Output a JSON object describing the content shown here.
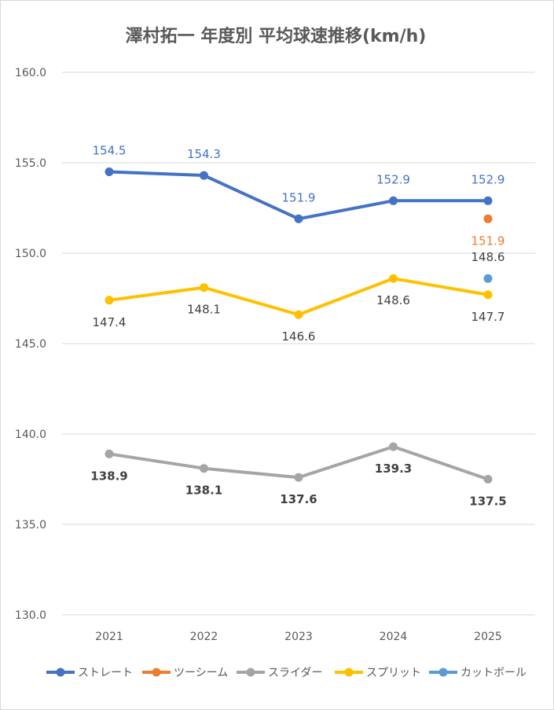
{
  "chart_data": {
    "type": "line",
    "title": "澤村拓一 年度別 平均球速推移(km/h)",
    "categories": [
      "2021",
      "2022",
      "2023",
      "2024",
      "2025"
    ],
    "ylim": [
      130,
      160
    ],
    "yticks": [
      "130.0",
      "135.0",
      "140.0",
      "145.0",
      "150.0",
      "155.0",
      "160.0"
    ],
    "grid": true,
    "legend_position": "bottom",
    "series": [
      {
        "name": "ストレート",
        "color": "#4472C4",
        "values": [
          154.5,
          154.3,
          151.9,
          152.9,
          152.9
        ],
        "labels": [
          "154.5",
          "154.3",
          "151.9",
          "152.9",
          "152.9"
        ],
        "label_pos": "above",
        "label_color": "#4472C4"
      },
      {
        "name": "ツーシーム",
        "color": "#ED7D31",
        "values": [
          null,
          null,
          null,
          null,
          151.9
        ],
        "labels": [
          null,
          null,
          null,
          null,
          "151.9"
        ],
        "label_pos": "below",
        "label_color": "#ED7D31"
      },
      {
        "name": "スライダー",
        "color": "#A5A5A5",
        "values": [
          138.9,
          138.1,
          137.6,
          139.3,
          137.5
        ],
        "labels": [
          "138.9",
          "138.1",
          "137.6",
          "139.3",
          "137.5"
        ],
        "label_pos": "below",
        "label_color": "#404040",
        "bold": true
      },
      {
        "name": "スプリット",
        "color": "#FFC000",
        "values": [
          147.4,
          148.1,
          146.6,
          148.6,
          147.7
        ],
        "labels": [
          "147.4",
          "148.1",
          "146.6",
          "148.6",
          "147.7"
        ],
        "label_pos": "below",
        "label_color": "#404040"
      },
      {
        "name": "カットボール",
        "color": "#5B9BD5",
        "values": [
          null,
          null,
          null,
          null,
          148.6
        ],
        "labels": [
          null,
          null,
          null,
          null,
          "148.6"
        ],
        "label_pos": "above",
        "label_color": "#404040"
      }
    ]
  }
}
